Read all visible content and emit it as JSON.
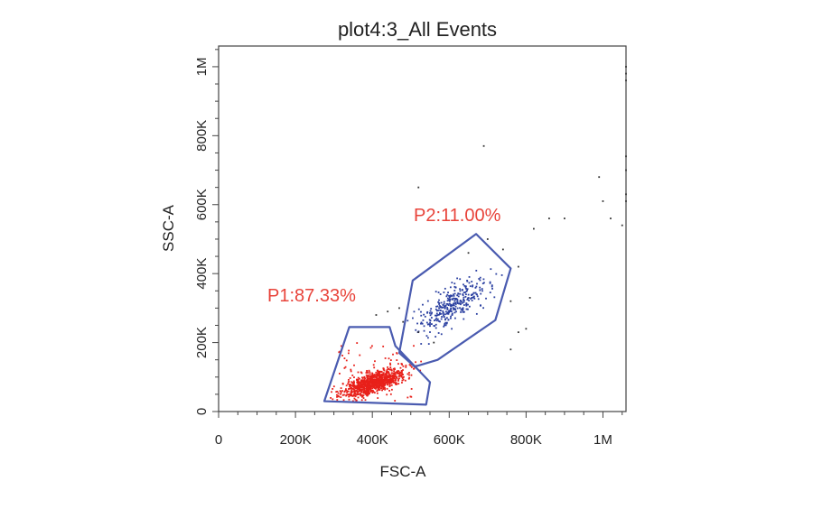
{
  "chart_data": {
    "type": "scatter",
    "title": "plot4:3_All Events",
    "xlabel": "FSC-A",
    "ylabel": "SSC-A",
    "xlim": [
      0,
      1060000
    ],
    "ylim": [
      0,
      1060000
    ],
    "x_ticks": [
      {
        "value": 0,
        "label": "0"
      },
      {
        "value": 200000,
        "label": "200K"
      },
      {
        "value": 400000,
        "label": "400K"
      },
      {
        "value": 600000,
        "label": "600K"
      },
      {
        "value": 800000,
        "label": "800K"
      },
      {
        "value": 1000000,
        "label": "1M"
      }
    ],
    "y_ticks": [
      {
        "value": 0,
        "label": "0"
      },
      {
        "value": 200000,
        "label": "200K"
      },
      {
        "value": 400000,
        "label": "400K"
      },
      {
        "value": 600000,
        "label": "600K"
      },
      {
        "value": 800000,
        "label": "800K"
      },
      {
        "value": 1000000,
        "label": "1M"
      }
    ],
    "minor_tick_step": 50000,
    "grid": false,
    "colors": {
      "P1": "#e8201a",
      "P2": "#2a3fa0",
      "outside": "#333333",
      "gate": "#4a5bb0",
      "gate_label": "#e8433a"
    },
    "gates": [
      {
        "name": "P1",
        "label": "P1:87.33%",
        "percent": 87.33,
        "polygon": [
          [
            275000,
            30000
          ],
          [
            340000,
            245000
          ],
          [
            445000,
            245000
          ],
          [
            460000,
            190000
          ],
          [
            550000,
            85000
          ],
          [
            540000,
            20000
          ]
        ]
      },
      {
        "name": "P2",
        "label": "P2:11.00%",
        "percent": 11.0,
        "polygon": [
          [
            470000,
            170000
          ],
          [
            505000,
            380000
          ],
          [
            670000,
            515000
          ],
          [
            760000,
            415000
          ],
          [
            720000,
            265000
          ],
          [
            570000,
            150000
          ],
          [
            510000,
            130000
          ]
        ]
      }
    ],
    "populations": [
      {
        "name": "P1",
        "center": [
          405000,
          85000
        ],
        "count": 950
      },
      {
        "name": "P2",
        "center": [
          610000,
          310000
        ],
        "count": 330
      }
    ],
    "outlier_points": [
      [
        520000,
        650000
      ],
      [
        690000,
        770000
      ],
      [
        860000,
        560000
      ],
      [
        820000,
        530000
      ],
      [
        780000,
        420000
      ],
      [
        810000,
        330000
      ],
      [
        780000,
        230000
      ],
      [
        760000,
        180000
      ],
      [
        900000,
        560000
      ],
      [
        1000000,
        610000
      ],
      [
        1020000,
        560000
      ],
      [
        1060000,
        700000
      ],
      [
        1060000,
        630000
      ],
      [
        1060000,
        610000
      ],
      [
        1060000,
        740000
      ],
      [
        1060000,
        1000000
      ],
      [
        1060000,
        980000
      ],
      [
        1060000,
        960000
      ],
      [
        1050000,
        540000
      ],
      [
        990000,
        680000
      ],
      [
        470000,
        300000
      ],
      [
        480000,
        260000
      ],
      [
        440000,
        290000
      ],
      [
        410000,
        280000
      ],
      [
        740000,
        470000
      ],
      [
        700000,
        500000
      ],
      [
        650000,
        460000
      ],
      [
        560000,
        200000
      ],
      [
        520000,
        230000
      ],
      [
        760000,
        320000
      ],
      [
        800000,
        240000
      ]
    ]
  }
}
